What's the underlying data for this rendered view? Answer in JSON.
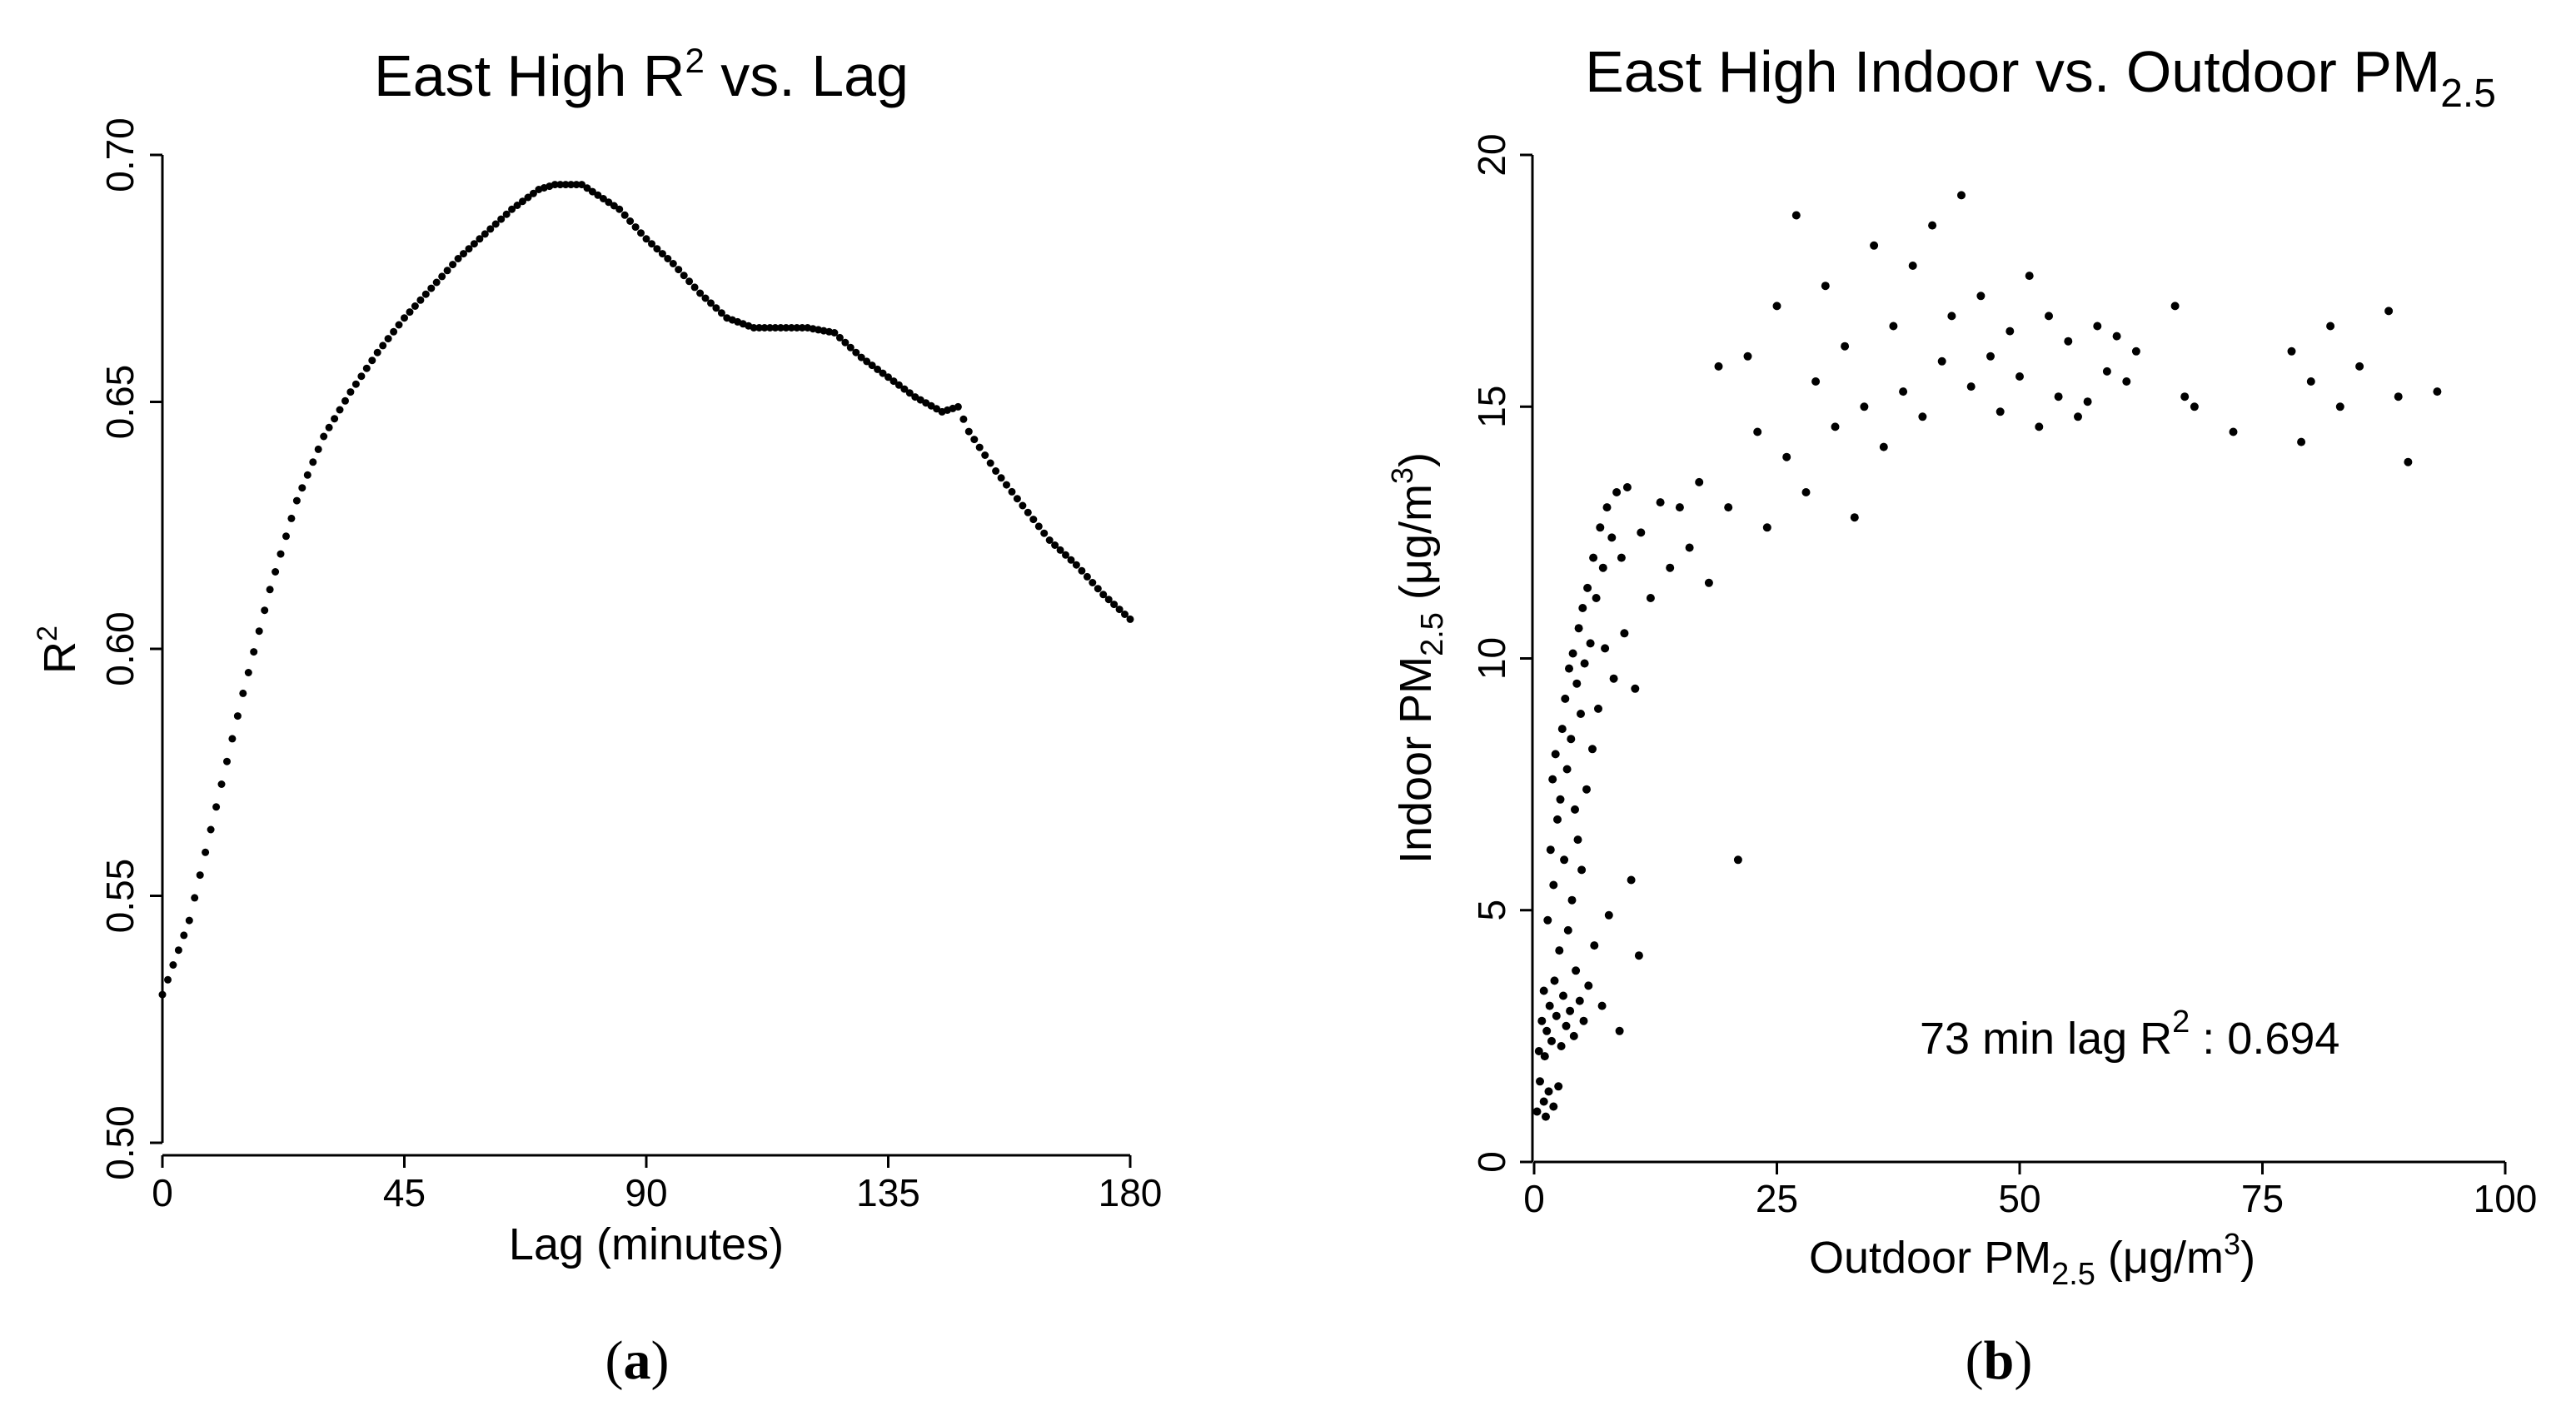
{
  "chart_data": [
    {
      "type": "scatter",
      "panel_label": "a",
      "title": "East High R",
      "title_superscript": "2",
      "title_suffix": " vs. Lag",
      "xlabel": "Lag (minutes)",
      "ylabel": "R",
      "ylabel_superscript": "2",
      "xlim": [
        0,
        180
      ],
      "ylim": [
        0.5,
        0.7
      ],
      "xticks": [
        0,
        45,
        90,
        135,
        180
      ],
      "xtick_labels": [
        "0",
        "45",
        "90",
        "135",
        "180"
      ],
      "yticks": [
        0.5,
        0.55,
        0.6,
        0.65,
        0.7
      ],
      "ytick_labels": [
        "0.50",
        "0.55",
        "0.60",
        "0.65",
        "0.70"
      ],
      "control_points": [
        [
          0,
          0.53
        ],
        [
          5,
          0.545
        ],
        [
          10,
          0.568
        ],
        [
          15,
          0.591
        ],
        [
          20,
          0.612
        ],
        [
          25,
          0.63
        ],
        [
          30,
          0.643
        ],
        [
          35,
          0.652
        ],
        [
          40,
          0.66
        ],
        [
          45,
          0.667
        ],
        [
          50,
          0.673
        ],
        [
          55,
          0.679
        ],
        [
          60,
          0.684
        ],
        [
          65,
          0.689
        ],
        [
          70,
          0.693
        ],
        [
          73,
          0.694
        ],
        [
          78,
          0.694
        ],
        [
          85,
          0.689
        ],
        [
          90,
          0.683
        ],
        [
          95,
          0.678
        ],
        [
          100,
          0.672
        ],
        [
          105,
          0.667
        ],
        [
          110,
          0.665
        ],
        [
          115,
          0.665
        ],
        [
          120,
          0.665
        ],
        [
          125,
          0.664
        ],
        [
          130,
          0.659
        ],
        [
          135,
          0.655
        ],
        [
          140,
          0.651
        ],
        [
          145,
          0.648
        ],
        [
          148,
          0.649
        ],
        [
          150,
          0.644
        ],
        [
          155,
          0.636
        ],
        [
          160,
          0.629
        ],
        [
          165,
          0.622
        ],
        [
          170,
          0.617
        ],
        [
          175,
          0.611
        ],
        [
          180,
          0.606
        ]
      ]
    },
    {
      "type": "scatter",
      "panel_label": "b",
      "title": "East High Indoor vs. Outdoor PM",
      "title_subscript": "2.5",
      "xlabel": "Outdoor PM",
      "xlabel_subscript": "2.5",
      "xlabel_suffix": " (μg/m",
      "xlabel_superscript": "3",
      "xlabel_end": ")",
      "ylabel": "Indoor PM",
      "ylabel_subscript": "2.5",
      "ylabel_suffix": " (μg/m",
      "ylabel_superscript": "3",
      "ylabel_end": ")",
      "xlim": [
        0,
        100
      ],
      "ylim": [
        0,
        20
      ],
      "xticks": [
        0,
        25,
        50,
        75,
        100
      ],
      "xtick_labels": [
        "0",
        "25",
        "50",
        "75",
        "100"
      ],
      "yticks": [
        0,
        5,
        10,
        15,
        20
      ],
      "ytick_labels": [
        "0",
        "5",
        "10",
        "15",
        "20"
      ],
      "annotation": "73 min lag R",
      "annotation_superscript": "2",
      "annotation_suffix": " : 0.694",
      "points": [
        [
          0.3,
          1.0
        ],
        [
          0.5,
          2.2
        ],
        [
          0.6,
          1.6
        ],
        [
          0.8,
          2.8
        ],
        [
          1.0,
          1.2
        ],
        [
          1.0,
          3.4
        ],
        [
          1.1,
          2.1
        ],
        [
          1.2,
          0.9
        ],
        [
          1.3,
          2.6
        ],
        [
          1.4,
          4.8
        ],
        [
          1.5,
          1.4
        ],
        [
          1.6,
          3.1
        ],
        [
          1.7,
          6.2
        ],
        [
          1.8,
          2.4
        ],
        [
          1.9,
          7.6
        ],
        [
          2.0,
          1.1
        ],
        [
          2.0,
          5.5
        ],
        [
          2.1,
          3.6
        ],
        [
          2.2,
          8.1
        ],
        [
          2.3,
          2.9
        ],
        [
          2.4,
          6.8
        ],
        [
          2.5,
          1.5
        ],
        [
          2.6,
          4.2
        ],
        [
          2.7,
          7.2
        ],
        [
          2.8,
          2.3
        ],
        [
          2.9,
          8.6
        ],
        [
          3.0,
          3.3
        ],
        [
          3.1,
          6.0
        ],
        [
          3.2,
          9.2
        ],
        [
          3.3,
          2.7
        ],
        [
          3.4,
          7.8
        ],
        [
          3.5,
          4.6
        ],
        [
          3.6,
          9.8
        ],
        [
          3.7,
          3.0
        ],
        [
          3.8,
          8.4
        ],
        [
          3.9,
          5.2
        ],
        [
          4.0,
          10.1
        ],
        [
          4.1,
          2.5
        ],
        [
          4.2,
          7.0
        ],
        [
          4.3,
          3.8
        ],
        [
          4.4,
          9.5
        ],
        [
          4.5,
          6.4
        ],
        [
          4.6,
          10.6
        ],
        [
          4.7,
          3.2
        ],
        [
          4.8,
          8.9
        ],
        [
          4.9,
          5.8
        ],
        [
          5.0,
          11.0
        ],
        [
          5.1,
          2.8
        ],
        [
          5.2,
          9.9
        ],
        [
          5.4,
          7.4
        ],
        [
          5.5,
          11.4
        ],
        [
          5.6,
          3.5
        ],
        [
          5.8,
          10.3
        ],
        [
          6.0,
          8.2
        ],
        [
          6.1,
          12.0
        ],
        [
          6.2,
          4.3
        ],
        [
          6.4,
          11.2
        ],
        [
          6.6,
          9.0
        ],
        [
          6.8,
          12.6
        ],
        [
          7.0,
          3.1
        ],
        [
          7.1,
          11.8
        ],
        [
          7.3,
          10.2
        ],
        [
          7.5,
          13.0
        ],
        [
          7.7,
          4.9
        ],
        [
          8.0,
          12.4
        ],
        [
          8.2,
          9.6
        ],
        [
          8.5,
          13.3
        ],
        [
          8.8,
          2.6
        ],
        [
          9.0,
          12.0
        ],
        [
          9.3,
          10.5
        ],
        [
          9.6,
          13.4
        ],
        [
          10.0,
          5.6
        ],
        [
          10.4,
          9.4
        ],
        [
          10.8,
          4.1
        ],
        [
          11.0,
          12.5
        ],
        [
          12.0,
          11.2
        ],
        [
          13.0,
          13.1
        ],
        [
          14.0,
          11.8
        ],
        [
          15.0,
          13.0
        ],
        [
          16.0,
          12.2
        ],
        [
          17.0,
          13.5
        ],
        [
          18.0,
          11.5
        ],
        [
          19.0,
          15.8
        ],
        [
          20.0,
          13.0
        ],
        [
          21.0,
          6.0
        ],
        [
          22.0,
          16.0
        ],
        [
          23.0,
          14.5
        ],
        [
          24.0,
          12.6
        ],
        [
          25.0,
          17.0
        ],
        [
          26.0,
          14.0
        ],
        [
          27.0,
          18.8
        ],
        [
          28.0,
          13.3
        ],
        [
          29.0,
          15.5
        ],
        [
          30.0,
          17.4
        ],
        [
          31.0,
          14.6
        ],
        [
          32.0,
          16.2
        ],
        [
          33.0,
          12.8
        ],
        [
          34.0,
          15.0
        ],
        [
          35.0,
          18.2
        ],
        [
          36.0,
          14.2
        ],
        [
          37.0,
          16.6
        ],
        [
          38.0,
          15.3
        ],
        [
          39.0,
          17.8
        ],
        [
          40.0,
          14.8
        ],
        [
          41.0,
          18.6
        ],
        [
          42.0,
          15.9
        ],
        [
          43.0,
          16.8
        ],
        [
          44.0,
          19.2
        ],
        [
          45.0,
          15.4
        ],
        [
          46.0,
          17.2
        ],
        [
          47.0,
          16.0
        ],
        [
          48.0,
          14.9
        ],
        [
          49.0,
          16.5
        ],
        [
          50.0,
          15.6
        ],
        [
          51.0,
          17.6
        ],
        [
          52.0,
          14.6
        ],
        [
          53.0,
          16.8
        ],
        [
          54.0,
          15.2
        ],
        [
          55.0,
          16.3
        ],
        [
          56.0,
          14.8
        ],
        [
          57.0,
          15.1
        ],
        [
          58.0,
          16.6
        ],
        [
          59.0,
          15.7
        ],
        [
          60.0,
          16.4
        ],
        [
          61.0,
          15.5
        ],
        [
          62.0,
          16.1
        ],
        [
          66.0,
          17.0
        ],
        [
          67.0,
          15.2
        ],
        [
          68.0,
          15.0
        ],
        [
          72.0,
          14.5
        ],
        [
          78.0,
          16.1
        ],
        [
          79.0,
          14.3
        ],
        [
          80.0,
          15.5
        ],
        [
          82.0,
          16.6
        ],
        [
          83.0,
          15.0
        ],
        [
          85.0,
          15.8
        ],
        [
          88.0,
          16.9
        ],
        [
          89.0,
          15.2
        ],
        [
          90.0,
          13.9
        ],
        [
          93.0,
          15.3
        ]
      ]
    }
  ]
}
